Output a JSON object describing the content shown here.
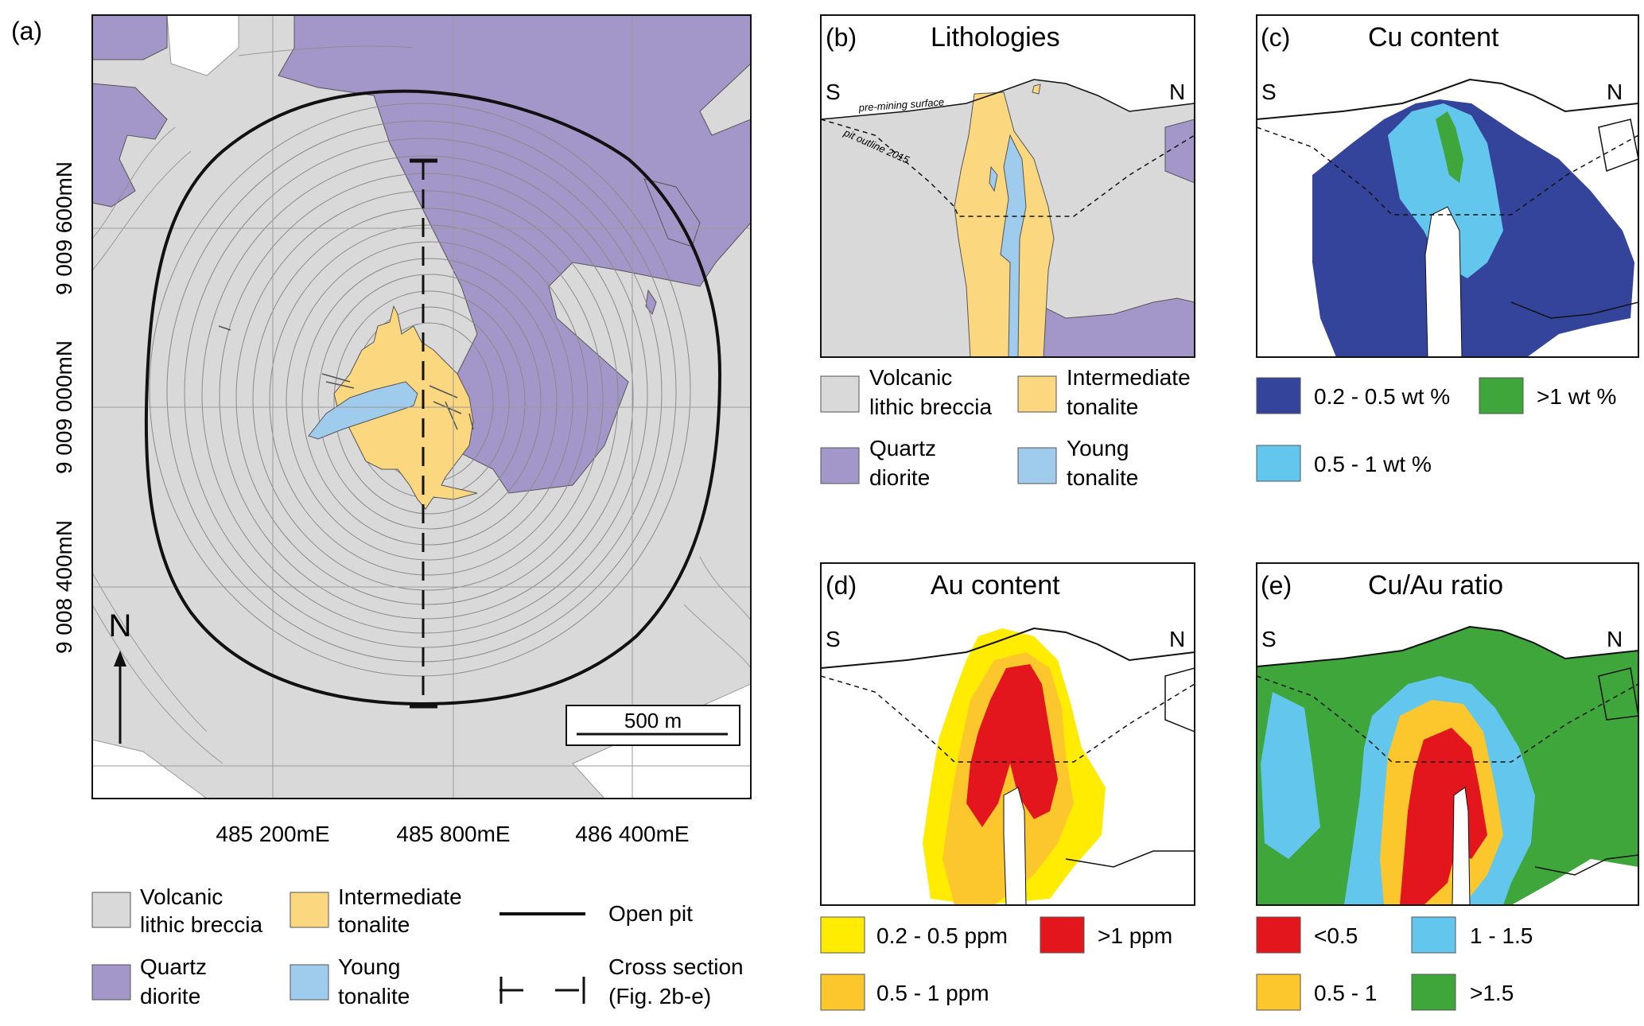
{
  "panel_a": {
    "label": "(a)",
    "northings": [
      "9 009 600mN",
      "9 009 000mN",
      "9 008 400mN"
    ],
    "eastings": [
      "485 200mE",
      "485 800mE",
      "486 400mE"
    ],
    "north_arrow": "N",
    "scale_bar": "500 m"
  },
  "legend_a": {
    "volcanic": [
      "Volcanic",
      "lithic breccia"
    ],
    "intermediate": [
      "Intermediate",
      "tonalite"
    ],
    "quartz": [
      "Quartz",
      "diorite"
    ],
    "young": [
      "Young",
      "tonalite"
    ],
    "open_pit": "Open pit",
    "cross_section": [
      "Cross section",
      "(Fig. 2b-e)"
    ]
  },
  "panel_b": {
    "label": "(b)",
    "title": "Lithologies",
    "south": "S",
    "north": "N",
    "pre_mining": "pre-mining surface",
    "pit_outline": "pit outline 2015"
  },
  "legend_b": {
    "volcanic": [
      "Volcanic",
      "lithic breccia"
    ],
    "intermediate": [
      "Intermediate",
      "tonalite"
    ],
    "quartz": [
      "Quartz",
      "diorite"
    ],
    "young": [
      "Young",
      "tonalite"
    ]
  },
  "panel_c": {
    "label": "(c)",
    "title": "Cu content",
    "south": "S",
    "north": "N",
    "legend": [
      "0.2 - 0.5 wt %",
      ">1 wt %",
      "0.5 - 1 wt %"
    ]
  },
  "panel_d": {
    "label": "(d)",
    "title": "Au content",
    "south": "S",
    "north": "N",
    "legend": [
      "0.2 - 0.5 ppm",
      ">1 ppm",
      "0.5 - 1 ppm"
    ]
  },
  "panel_e": {
    "label": "(e)",
    "title": "Cu/Au ratio",
    "south": "S",
    "north": "N",
    "legend": [
      "<0.5",
      "1 - 1.5",
      "0.5 - 1",
      ">1.5"
    ]
  },
  "colors": {
    "volcanic": "#d9d9d9",
    "quartz": "#a396c8",
    "intermediate": "#fbd77f",
    "young": "#9fcbec",
    "cu_low": "#34449a",
    "cu_mid": "#63c6ec",
    "cu_high": "#3ea63a",
    "au_low": "#ffec00",
    "au_mid": "#fcc72d",
    "au_high": "#e2161c",
    "r_low": "#e2161c",
    "r_mid": "#fcc72d",
    "r_hi": "#63c6ec",
    "r_top": "#3ea63a"
  }
}
